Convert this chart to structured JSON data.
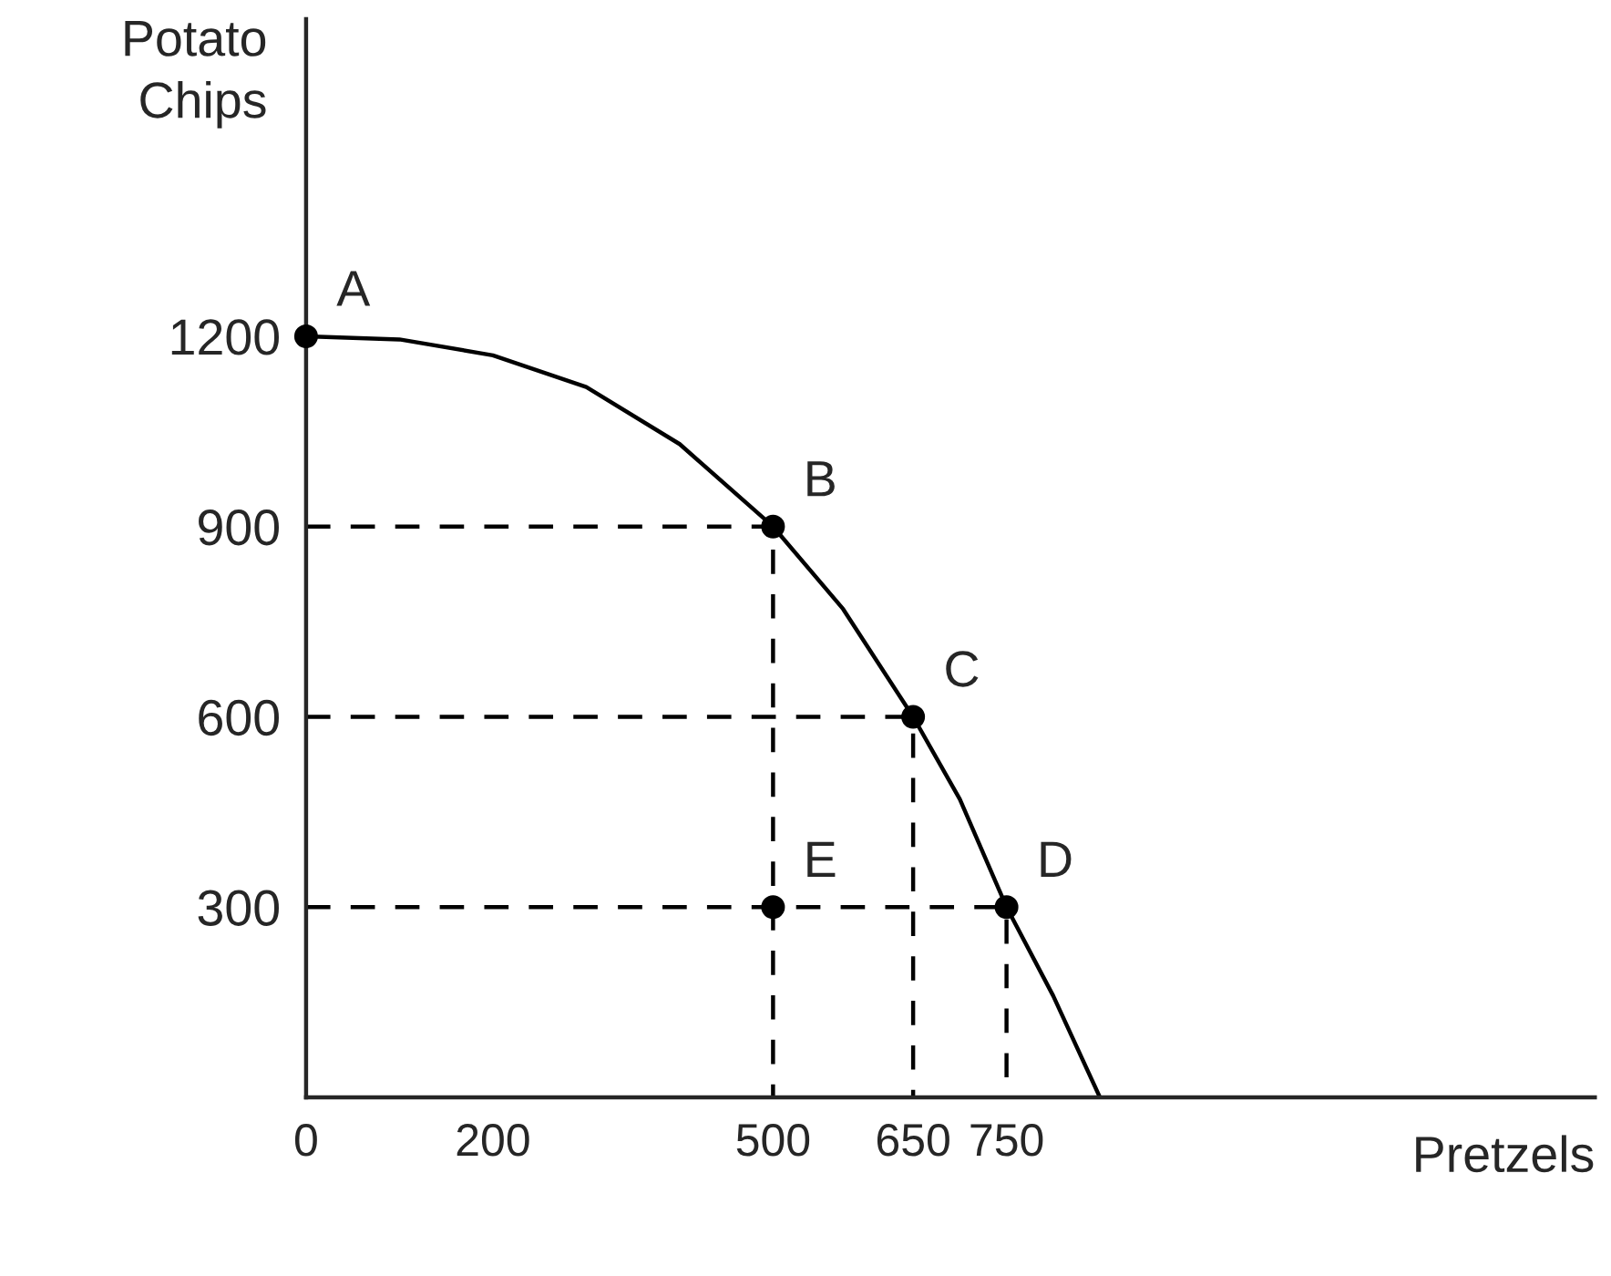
{
  "chart_data": {
    "type": "line",
    "xlabel": "Pretzels",
    "ylabel": "Potato Chips",
    "xlim": [
      0,
      1380
    ],
    "ylim": [
      0,
      1700
    ],
    "xticks": [
      0,
      200,
      500,
      650,
      750
    ],
    "yticks": [
      300,
      600,
      900,
      1200
    ],
    "grid": false,
    "legend": false,
    "series": [
      {
        "color": "#000000",
        "line_style": "solid",
        "marker": "none",
        "x": [
          0,
          100,
          200,
          300,
          400,
          500,
          575,
          650,
          700,
          750,
          800,
          850
        ],
        "values": [
          1200,
          1195,
          1170,
          1120,
          1030,
          900,
          770,
          600,
          470,
          300,
          160,
          0
        ]
      },
      {
        "type": "line",
        "color": "#000000",
        "line_style": "dashed",
        "marker": "none",
        "x": [
          0,
          500,
          500
        ],
        "values": [
          900,
          900,
          0
        ]
      },
      {
        "type": "line",
        "color": "#000000",
        "line_style": "dashed",
        "marker": "none",
        "x": [
          0,
          650,
          650
        ],
        "values": [
          600,
          600,
          0
        ]
      },
      {
        "type": "line",
        "color": "#000000",
        "line_style": "dashed",
        "marker": "none",
        "x": [
          0,
          750,
          750
        ],
        "values": [
          300,
          300,
          0
        ]
      },
      {
        "type": "scatter",
        "color": "#000000",
        "marker": "circle",
        "x": [
          0,
          500,
          650,
          750,
          500
        ],
        "values": [
          1200,
          900,
          600,
          300,
          300
        ]
      }
    ],
    "annotations": [
      {
        "text": "A",
        "x": 0,
        "y": 1200
      },
      {
        "text": "B",
        "x": 500,
        "y": 900
      },
      {
        "text": "C",
        "x": 650,
        "y": 600
      },
      {
        "text": "D",
        "x": 750,
        "y": 300
      },
      {
        "text": "E",
        "x": 500,
        "y": 300
      }
    ]
  }
}
